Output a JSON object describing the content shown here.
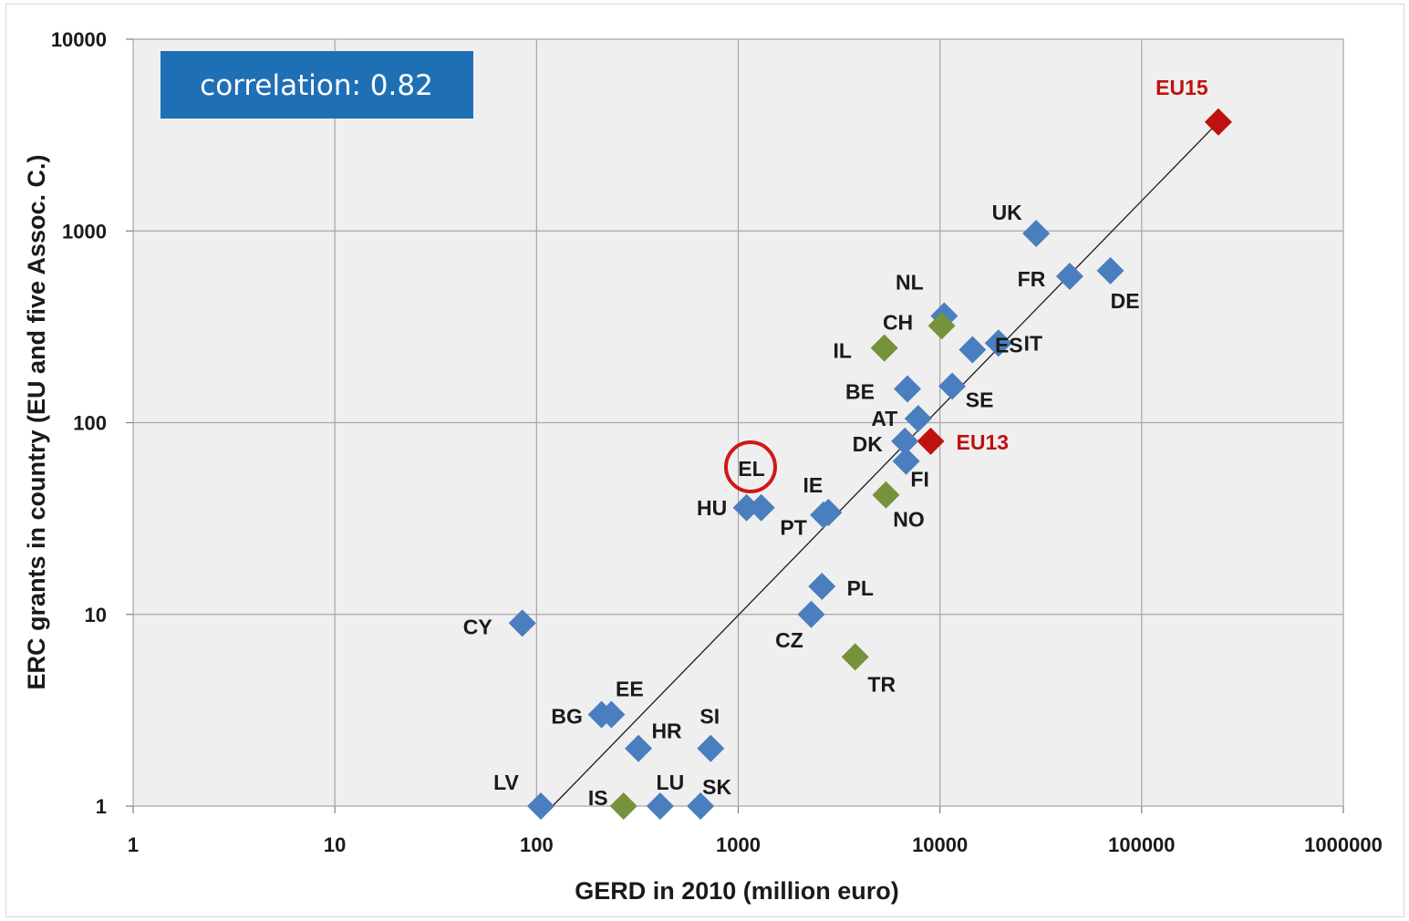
{
  "chart_data": {
    "type": "scatter",
    "xlabel": "GERD in 2010 (million euro)",
    "ylabel": "ERC grants in country (EU and five Assoc. C.)",
    "x_scale": "log",
    "y_scale": "log",
    "xlim": [
      1,
      1000000
    ],
    "ylim": [
      1,
      10000
    ],
    "x_ticks": [
      "1",
      "10",
      "100",
      "1000",
      "10000",
      "100000",
      "1000000"
    ],
    "y_ticks": [
      "1",
      "10",
      "100",
      "1000",
      "10000"
    ],
    "grid": true,
    "annotation": "correlation: 0.82",
    "highlighted": "EL",
    "colors": {
      "eu_member": "#4a7ebf",
      "associated": "#76923c",
      "aggregate": "#c0100f",
      "highlight_ring": "#d01818",
      "annotation_bg": "#1f6fb5",
      "plot_bg": "#efefef",
      "grid": "#a6a6a6"
    },
    "trendline": {
      "x": [
        120,
        240000
      ],
      "y": [
        1,
        3700
      ]
    },
    "points": [
      {
        "label": "EU15",
        "x": 240000,
        "y": 3700,
        "group": "aggregate"
      },
      {
        "label": "EU13",
        "x": 9000,
        "y": 80,
        "group": "aggregate"
      },
      {
        "label": "UK",
        "x": 30000,
        "y": 970,
        "group": "eu_member"
      },
      {
        "label": "FR",
        "x": 44000,
        "y": 580,
        "group": "eu_member"
      },
      {
        "label": "DE",
        "x": 70000,
        "y": 620,
        "group": "eu_member"
      },
      {
        "label": "NL",
        "x": 10500,
        "y": 360,
        "group": "eu_member"
      },
      {
        "label": "CH",
        "x": 10200,
        "y": 320,
        "group": "associated"
      },
      {
        "label": "ES",
        "x": 14500,
        "y": 240,
        "group": "eu_member"
      },
      {
        "label": "IT",
        "x": 19500,
        "y": 260,
        "group": "eu_member"
      },
      {
        "label": "IL",
        "x": 5300,
        "y": 245,
        "group": "associated"
      },
      {
        "label": "BE",
        "x": 6900,
        "y": 150,
        "group": "eu_member"
      },
      {
        "label": "SE",
        "x": 11500,
        "y": 155,
        "group": "eu_member"
      },
      {
        "label": "AT",
        "x": 7800,
        "y": 105,
        "group": "eu_member"
      },
      {
        "label": "DK",
        "x": 6700,
        "y": 80,
        "group": "eu_member"
      },
      {
        "label": "FI",
        "x": 6800,
        "y": 63,
        "group": "eu_member"
      },
      {
        "label": "NO",
        "x": 5400,
        "y": 42,
        "group": "associated"
      },
      {
        "label": "EL",
        "x": 1300,
        "y": 36,
        "group": "eu_member"
      },
      {
        "label": "HU",
        "x": 1100,
        "y": 36,
        "group": "eu_member"
      },
      {
        "label": "IE",
        "x": 2800,
        "y": 34,
        "group": "eu_member"
      },
      {
        "label": "PT",
        "x": 2650,
        "y": 33,
        "group": "eu_member"
      },
      {
        "label": "PL",
        "x": 2600,
        "y": 14,
        "group": "eu_member"
      },
      {
        "label": "CZ",
        "x": 2300,
        "y": 10,
        "group": "eu_member"
      },
      {
        "label": "TR",
        "x": 3800,
        "y": 6,
        "group": "associated"
      },
      {
        "label": "CY",
        "x": 85,
        "y": 9,
        "group": "eu_member"
      },
      {
        "label": "BG",
        "x": 210,
        "y": 3,
        "group": "eu_member"
      },
      {
        "label": "EE",
        "x": 235,
        "y": 3,
        "group": "eu_member"
      },
      {
        "label": "HR",
        "x": 320,
        "y": 2,
        "group": "eu_member"
      },
      {
        "label": "SI",
        "x": 730,
        "y": 2,
        "group": "eu_member"
      },
      {
        "label": "LV",
        "x": 105,
        "y": 1,
        "group": "eu_member"
      },
      {
        "label": "IS",
        "x": 270,
        "y": 1,
        "group": "associated"
      },
      {
        "label": "LU",
        "x": 410,
        "y": 1,
        "group": "eu_member"
      },
      {
        "label": "SK",
        "x": 650,
        "y": 1,
        "group": "eu_member"
      }
    ]
  }
}
